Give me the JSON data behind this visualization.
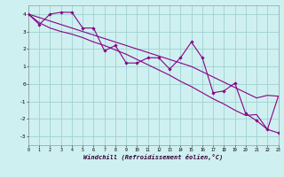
{
  "y_main": [
    4.0,
    3.4,
    4.0,
    4.1,
    4.1,
    3.2,
    3.2,
    1.9,
    2.2,
    1.2,
    1.2,
    1.5,
    1.5,
    0.85,
    1.5,
    2.4,
    1.5,
    -0.5,
    -0.4,
    0.05,
    -1.7,
    -2.1,
    -2.6,
    -2.8
  ],
  "y_upper": [
    4.0,
    3.8,
    3.6,
    3.4,
    3.2,
    3.0,
    2.8,
    2.6,
    2.4,
    2.2,
    2.0,
    1.8,
    1.6,
    1.4,
    1.2,
    1.0,
    0.7,
    0.4,
    0.1,
    -0.2,
    -0.5,
    -0.8,
    -0.65,
    -0.7
  ],
  "y_lower": [
    4.0,
    3.5,
    3.2,
    3.0,
    2.85,
    2.65,
    2.4,
    2.2,
    1.95,
    1.7,
    1.4,
    1.1,
    0.8,
    0.5,
    0.15,
    -0.15,
    -0.5,
    -0.85,
    -1.15,
    -1.5,
    -1.8,
    -1.75,
    -2.6,
    -0.7
  ],
  "n_points": 24,
  "line_color": "#880088",
  "bg_color": "#cff0f0",
  "grid_color": "#a0d0d0",
  "xlabel": "Windchill (Refroidissement éolien,°C)",
  "xticks": [
    0,
    1,
    2,
    3,
    4,
    5,
    6,
    7,
    8,
    9,
    10,
    11,
    12,
    13,
    14,
    15,
    16,
    17,
    18,
    19,
    20,
    21,
    22,
    23
  ],
  "yticks": [
    -3,
    -2,
    -1,
    0,
    1,
    2,
    3,
    4
  ],
  "xlim": [
    0,
    23
  ],
  "ylim": [
    -3.5,
    4.5
  ]
}
